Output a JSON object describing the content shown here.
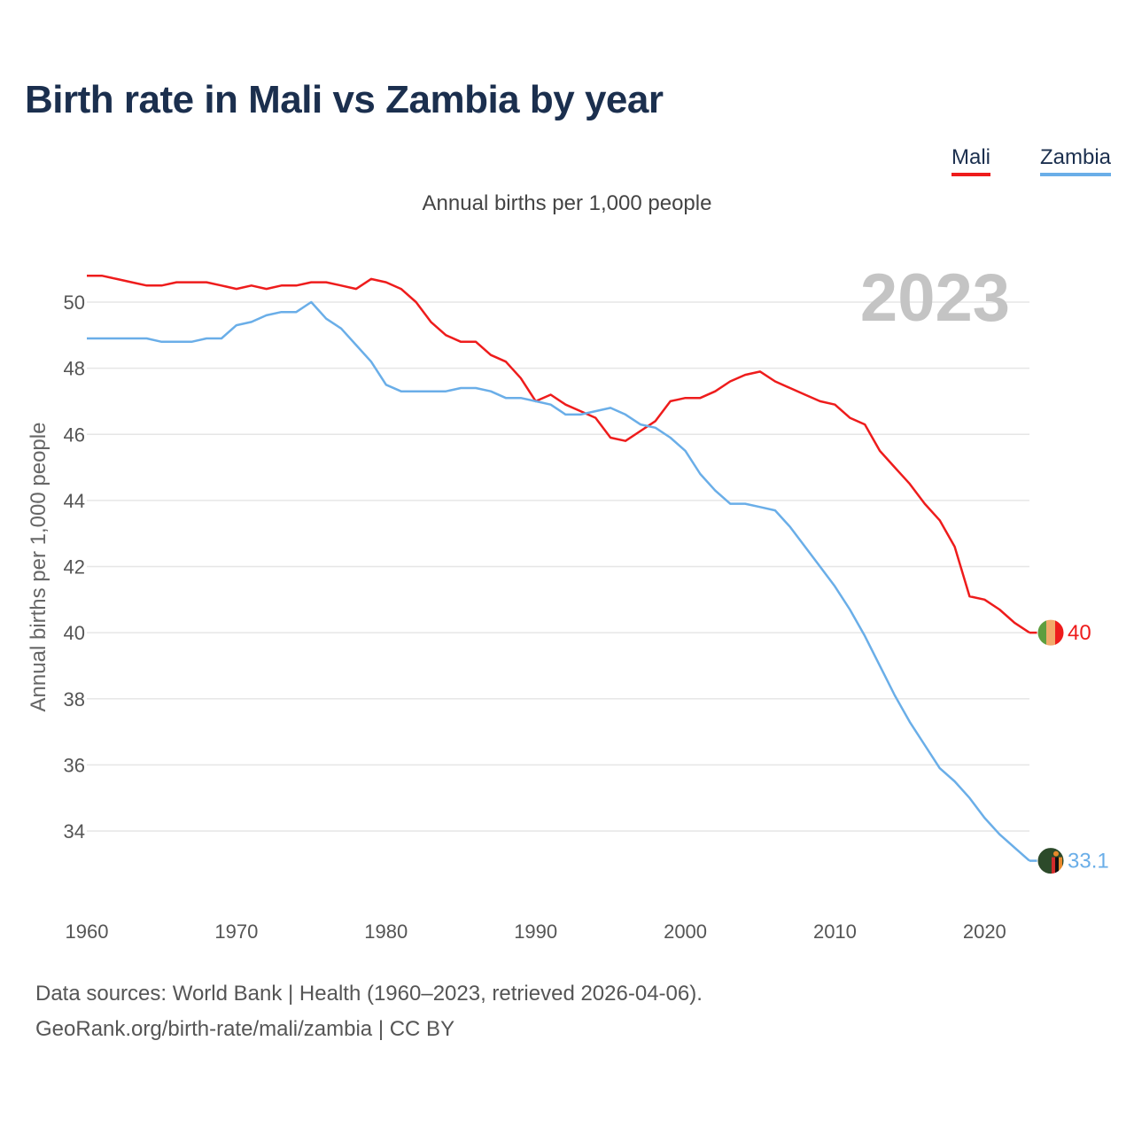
{
  "title": "Birth rate in Mali vs Zambia by year",
  "subtitle": "Annual births per 1,000 people",
  "year_label": "2023",
  "footer": {
    "source": "Data sources: World Bank | Health (1960–2023, retrieved 2026-04-06).",
    "credit": "GeoRank.org/birth-rate/mali/zambia | CC BY"
  },
  "chart_data": {
    "type": "line",
    "title": "Birth rate in Mali vs Zambia by year",
    "subtitle": "Annual births per 1,000 people",
    "xlabel": "",
    "ylabel": "Annual births per 1,000 people",
    "xlim": [
      1960,
      2023
    ],
    "ylim": [
      32.5,
      51.2
    ],
    "x_ticks": [
      1960,
      1970,
      1980,
      1990,
      2000,
      2010,
      2020
    ],
    "y_ticks": [
      34,
      36,
      38,
      40,
      42,
      44,
      46,
      48,
      50
    ],
    "grid": true,
    "legend_position": "top-right",
    "x": [
      1960,
      1961,
      1962,
      1963,
      1964,
      1965,
      1966,
      1967,
      1968,
      1969,
      1970,
      1971,
      1972,
      1973,
      1974,
      1975,
      1976,
      1977,
      1978,
      1979,
      1980,
      1981,
      1982,
      1983,
      1984,
      1985,
      1986,
      1987,
      1988,
      1989,
      1990,
      1991,
      1992,
      1993,
      1994,
      1995,
      1996,
      1997,
      1998,
      1999,
      2000,
      2001,
      2002,
      2003,
      2004,
      2005,
      2006,
      2007,
      2008,
      2009,
      2010,
      2011,
      2012,
      2013,
      2014,
      2015,
      2016,
      2017,
      2018,
      2019,
      2020,
      2021,
      2022,
      2023
    ],
    "series": [
      {
        "name": "Mali",
        "color": "#ee1c1c",
        "end_label": "40",
        "values": [
          50.8,
          50.8,
          50.7,
          50.6,
          50.5,
          50.5,
          50.6,
          50.6,
          50.6,
          50.5,
          50.4,
          50.5,
          50.4,
          50.5,
          50.5,
          50.6,
          50.6,
          50.5,
          50.4,
          50.7,
          50.6,
          50.4,
          50.0,
          49.4,
          49.0,
          48.8,
          48.8,
          48.4,
          48.2,
          47.7,
          47.0,
          47.2,
          46.9,
          46.7,
          46.5,
          45.9,
          45.8,
          46.1,
          46.4,
          47.0,
          47.1,
          47.1,
          47.3,
          47.6,
          47.8,
          47.9,
          47.6,
          47.4,
          47.2,
          47.0,
          46.9,
          46.5,
          46.3,
          45.5,
          45.0,
          44.5,
          43.9,
          43.4,
          42.6,
          41.1,
          41.0,
          40.7,
          40.3,
          40.0
        ]
      },
      {
        "name": "Zambia",
        "color": "#6aaee8",
        "end_label": "33.1",
        "values": [
          48.9,
          48.9,
          48.9,
          48.9,
          48.9,
          48.8,
          48.8,
          48.8,
          48.9,
          48.9,
          49.3,
          49.4,
          49.6,
          49.7,
          49.7,
          50.0,
          49.5,
          49.2,
          48.7,
          48.2,
          47.5,
          47.3,
          47.3,
          47.3,
          47.3,
          47.4,
          47.4,
          47.3,
          47.1,
          47.1,
          47.0,
          46.9,
          46.6,
          46.6,
          46.7,
          46.8,
          46.6,
          46.3,
          46.2,
          45.9,
          45.5,
          44.8,
          44.3,
          43.9,
          43.9,
          43.8,
          43.7,
          43.2,
          42.6,
          42.0,
          41.4,
          40.7,
          39.9,
          39.0,
          38.1,
          37.3,
          36.6,
          35.9,
          35.5,
          35.0,
          34.4,
          33.9,
          33.5,
          33.1
        ]
      }
    ]
  }
}
